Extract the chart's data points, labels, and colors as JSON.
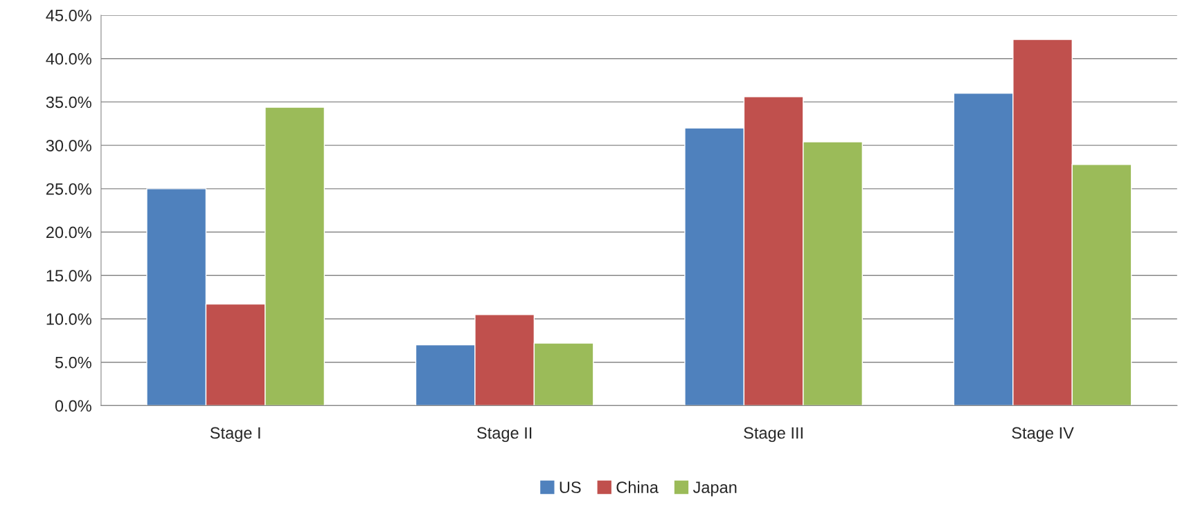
{
  "chart_data": {
    "type": "bar",
    "categories": [
      "Stage I",
      "Stage II",
      "Stage III",
      "Stage IV"
    ],
    "series": [
      {
        "name": "US",
        "color": "#4f81bd",
        "values": [
          25.0,
          7.0,
          32.0,
          36.0
        ]
      },
      {
        "name": "China",
        "color": "#c0504d",
        "values": [
          11.7,
          10.5,
          35.6,
          42.2
        ]
      },
      {
        "name": "Japan",
        "color": "#9bbb59",
        "values": [
          34.4,
          7.2,
          30.4,
          27.8
        ]
      }
    ],
    "ylim": [
      0,
      45
    ],
    "yticks": [
      {
        "value": 0,
        "label": "0.0%"
      },
      {
        "value": 5,
        "label": "5.0%"
      },
      {
        "value": 10,
        "label": "10.0%"
      },
      {
        "value": 15,
        "label": "15.0%"
      },
      {
        "value": 20,
        "label": "20.0%"
      },
      {
        "value": 25,
        "label": "25.0%"
      },
      {
        "value": 30,
        "label": "30.0%"
      },
      {
        "value": 35,
        "label": "35.0%"
      },
      {
        "value": 40,
        "label": "40.0%"
      },
      {
        "value": 45,
        "label": "45.0%"
      }
    ],
    "grid": "y",
    "legend": "bottom"
  }
}
